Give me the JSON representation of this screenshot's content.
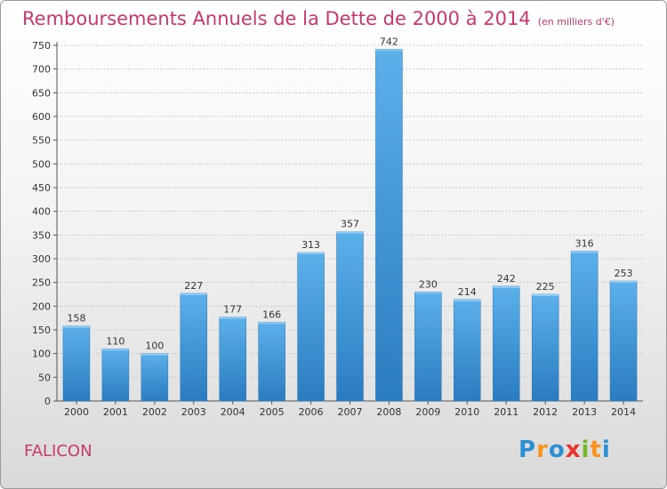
{
  "chart_data": {
    "type": "bar",
    "title": "Remboursements Annuels de la Dette de 2000 à 2014",
    "subtitle": "(en milliers d'€)",
    "categories": [
      "2000",
      "2001",
      "2002",
      "2003",
      "2004",
      "2005",
      "2006",
      "2007",
      "2008",
      "2009",
      "2010",
      "2011",
      "2012",
      "2013",
      "2014"
    ],
    "values": [
      158,
      110,
      100,
      227,
      177,
      166,
      313,
      357,
      742,
      230,
      214,
      242,
      225,
      316,
      253
    ],
    "ylim": [
      0,
      750
    ],
    "yticks": [
      0,
      50,
      100,
      150,
      200,
      250,
      300,
      350,
      400,
      450,
      500,
      550,
      600,
      650,
      700,
      750
    ],
    "grid": true,
    "bar_color": "#3d95d8"
  },
  "footer": {
    "commune": "FALICON",
    "brand_letters": [
      "P",
      "r",
      "o",
      "x",
      "i",
      "t",
      "i"
    ],
    "brand_colors": [
      "#2b8fd6",
      "#f7931e",
      "#2b8fd6",
      "#e8322e",
      "#73b72a",
      "#f7931e",
      "#2b8fd6"
    ]
  }
}
